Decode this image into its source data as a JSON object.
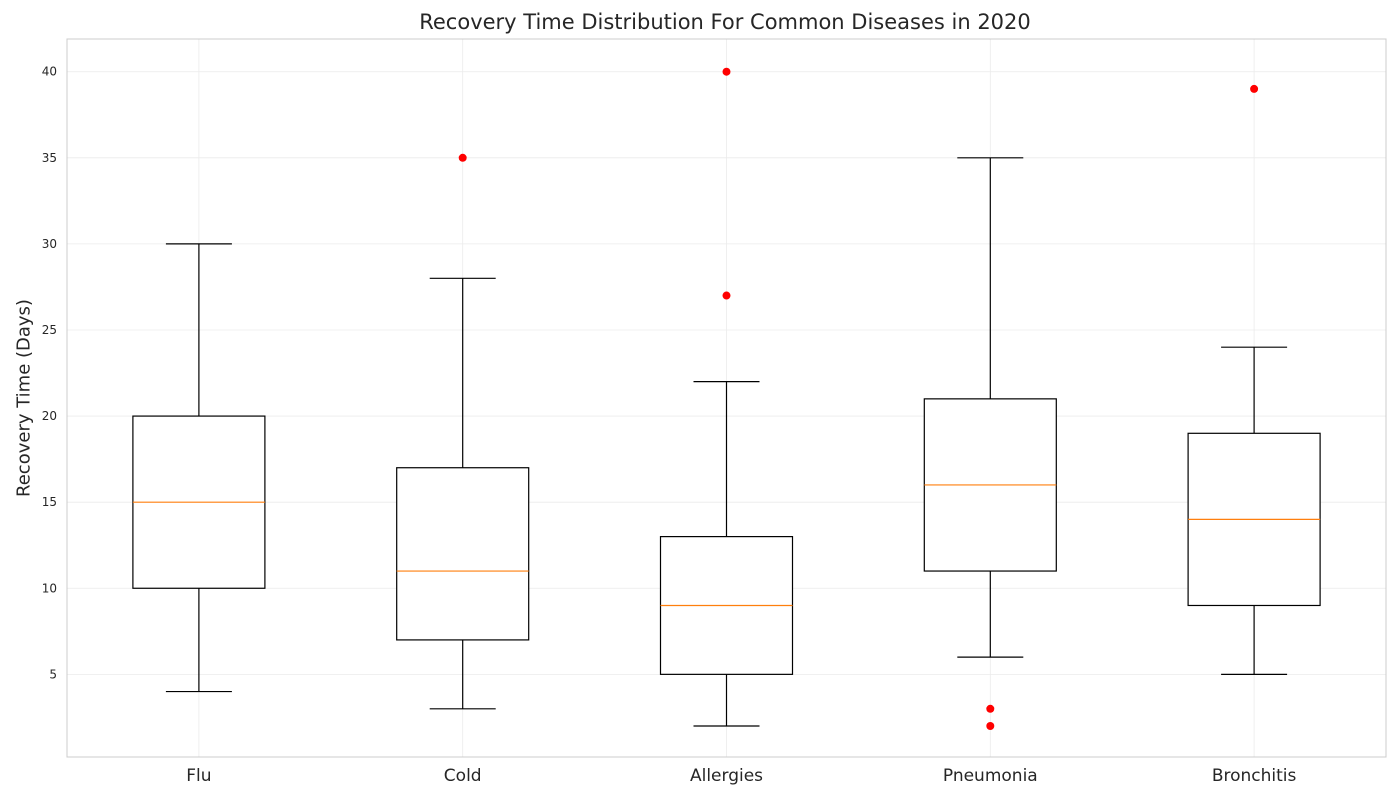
{
  "chart_data": {
    "type": "box",
    "title": "Recovery Time Distribution For Common Diseases in 2020",
    "xlabel": "",
    "ylabel": "Recovery Time (Days)",
    "ylim": [
      0.2,
      41.9
    ],
    "yticks": [
      5,
      10,
      15,
      20,
      25,
      30,
      35,
      40
    ],
    "grid": true,
    "categories": [
      "Flu",
      "Cold",
      "Allergies",
      "Pneumonia",
      "Bronchitis"
    ],
    "boxes": [
      {
        "category": "Flu",
        "whisker_low": 4,
        "q1": 10,
        "median": 15,
        "q3": 20,
        "whisker_high": 30,
        "outliers": []
      },
      {
        "category": "Cold",
        "whisker_low": 3,
        "q1": 7,
        "median": 11,
        "q3": 17,
        "whisker_high": 28,
        "outliers": [
          35
        ]
      },
      {
        "category": "Allergies",
        "whisker_low": 2,
        "q1": 5,
        "median": 9,
        "q3": 13,
        "whisker_high": 22,
        "outliers": [
          27,
          40
        ]
      },
      {
        "category": "Pneumonia",
        "whisker_low": 6,
        "q1": 11,
        "median": 16,
        "q3": 21,
        "whisker_high": 35,
        "outliers": [
          3,
          2
        ]
      },
      {
        "category": "Bronchitis",
        "whisker_low": 5,
        "q1": 9,
        "median": 14,
        "q3": 19,
        "whisker_high": 24,
        "outliers": [
          39
        ]
      }
    ],
    "colors": {
      "box": "#000000",
      "median": "#ff7f0e",
      "outlier": "#ff0000",
      "grid": "#ebebeb",
      "frame": "#cccccc"
    }
  }
}
